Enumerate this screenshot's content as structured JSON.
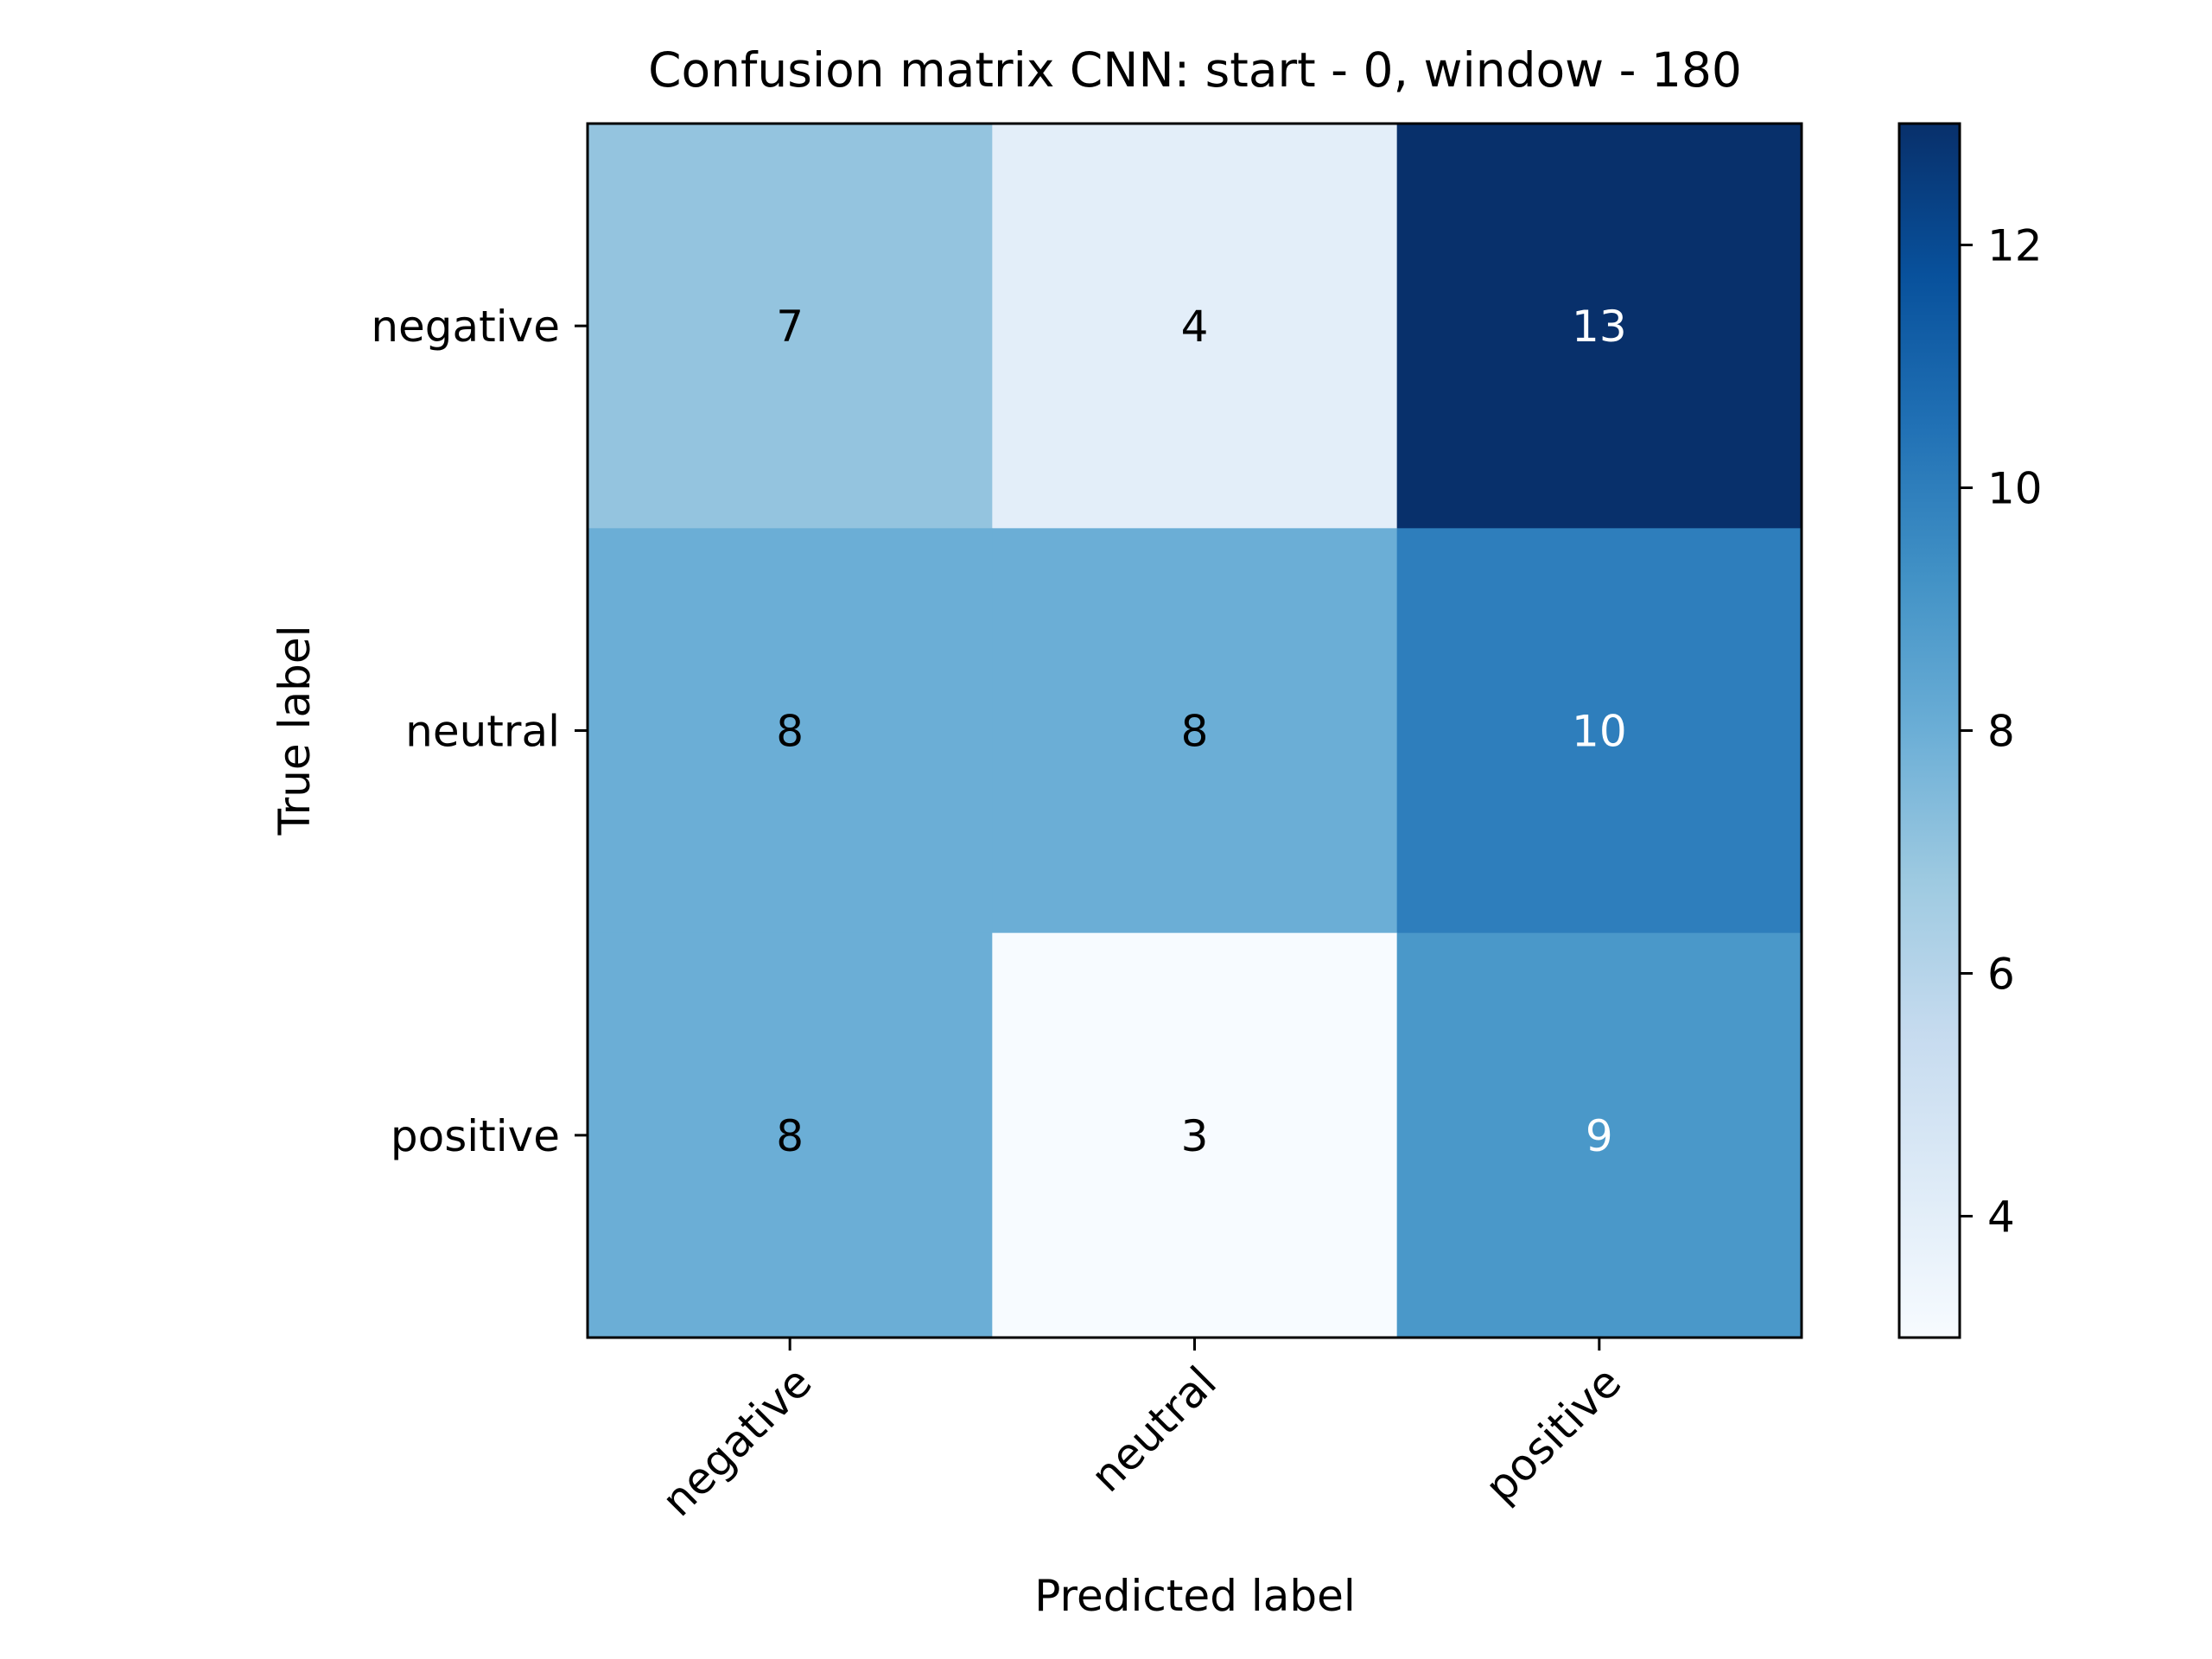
{
  "chart_data": {
    "type": "heatmap",
    "title": "Confusion matrix CNN: start - 0, window - 180",
    "xlabel": "Predicted label",
    "ylabel": "True label",
    "x_categories": [
      "negative",
      "neutral",
      "positive"
    ],
    "y_categories": [
      "negative",
      "neutral",
      "positive"
    ],
    "values": [
      [
        7,
        4,
        13
      ],
      [
        8,
        8,
        10
      ],
      [
        8,
        3,
        9
      ]
    ],
    "colormap": "Blues",
    "color_range": [
      3,
      13
    ],
    "colorbar_ticks": [
      4,
      6,
      8,
      10,
      12
    ],
    "cell_text_colors": {
      "dark_background": "#ffffff",
      "light_background": "#000000"
    },
    "grid": false
  }
}
